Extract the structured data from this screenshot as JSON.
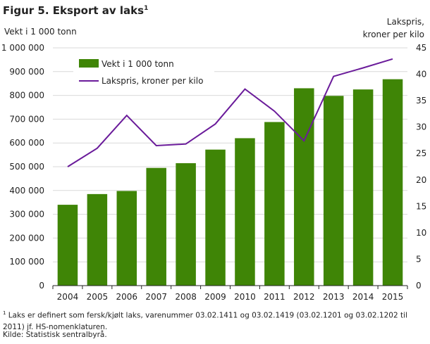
{
  "title": {
    "text": "Figur 5. Eksport av laks",
    "sup": "1"
  },
  "left_axis_label": "Vekt i 1 000 tonn",
  "right_axis_label": [
    "Lakspris,",
    "kroner per kilo"
  ],
  "footnote": {
    "sup": "1",
    "text": " Laks er definert som fersk/kjølt laks, varenummer 03.02.1411 og 03.02.1419 (03.02.1201 og 03.02.1202 til 2011) jf. HS-nomenklaturen."
  },
  "source": "Kilde: Statistisk sentralbyrå.",
  "colors": {
    "bar": "#3f8506",
    "line": "#6a1b9a",
    "grid": "#d9d9d9"
  },
  "chart_data": {
    "type": "bar",
    "categories": [
      "2004",
      "2005",
      "2006",
      "2007",
      "2008",
      "2009",
      "2010",
      "2011",
      "2012",
      "2013",
      "2014",
      "2015"
    ],
    "series": [
      {
        "name": "Vekt i 1 000 tonn",
        "type": "bar",
        "axis": "left",
        "values": [
          340000,
          385000,
          398000,
          495000,
          515000,
          572000,
          620000,
          688000,
          830000,
          798000,
          825000,
          868000
        ]
      },
      {
        "name": "Lakspris, kroner per kilo",
        "type": "line",
        "axis": "right",
        "values": [
          22.5,
          26.0,
          32.2,
          26.5,
          26.8,
          30.6,
          37.2,
          33.0,
          27.4,
          39.6,
          41.2,
          42.9
        ]
      }
    ],
    "y_left": {
      "min": 0,
      "max": 1000000,
      "step": 100000,
      "tick_labels": [
        "0",
        "100 000",
        "200 000",
        "300 000",
        "400 000",
        "500 000",
        "600 000",
        "700 000",
        "800 000",
        "900 000",
        "1 000 000"
      ]
    },
    "y_right": {
      "min": 0,
      "max": 45,
      "step": 5,
      "tick_labels": [
        "0",
        "5",
        "10",
        "15",
        "20",
        "25",
        "30",
        "35",
        "40",
        "45"
      ]
    },
    "grid": true,
    "legend_position": "top-left"
  }
}
